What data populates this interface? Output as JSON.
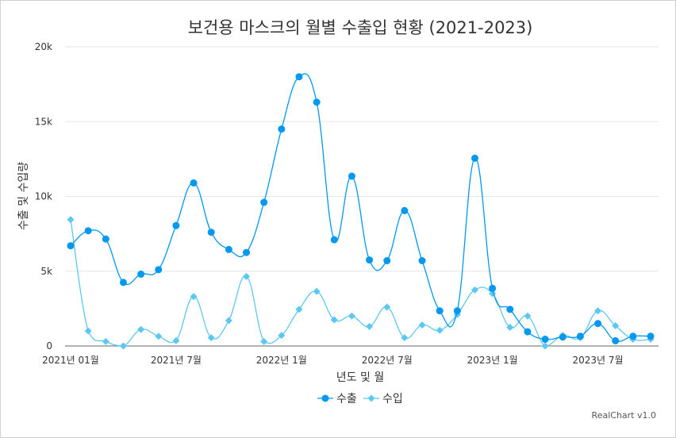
{
  "chart_data": {
    "type": "line",
    "title": "보건용 마스크의 월별 수출입 현황 (2021-2023)",
    "xlabel": "년도 및 월",
    "ylabel": "수출 및 수입량",
    "ylim": [
      0,
      20000
    ],
    "y_ticks": [
      "0",
      "5k",
      "10k",
      "15k",
      "20k"
    ],
    "y_tick_values": [
      0,
      5000,
      10000,
      15000,
      20000
    ],
    "x_tick_labels": [
      {
        "index": 0,
        "label": "2021년 01월"
      },
      {
        "index": 6,
        "label": "2021년 7월"
      },
      {
        "index": 12,
        "label": "2022년 1월"
      },
      {
        "index": 18,
        "label": "2022년 7월"
      },
      {
        "index": 24,
        "label": "2023년 1월"
      },
      {
        "index": 30,
        "label": "2023년 7월"
      }
    ],
    "grid": true,
    "legend_position": "bottom",
    "series": [
      {
        "name": "수출",
        "color": "#0098f0",
        "marker": "circle",
        "values": [
          6700,
          7700,
          7150,
          4250,
          4800,
          5100,
          8050,
          10900,
          7600,
          6450,
          6250,
          9600,
          14500,
          18000,
          16300,
          7100,
          11350,
          5750,
          5700,
          9050,
          5700,
          2350,
          2350,
          12550,
          3850,
          2450,
          950,
          450,
          600,
          650,
          1500,
          350,
          650,
          650
        ]
      },
      {
        "name": "수입",
        "color": "#5cc8f2",
        "marker": "diamond",
        "values": [
          8450,
          1000,
          300,
          0,
          1100,
          650,
          350,
          3300,
          550,
          1700,
          4650,
          300,
          700,
          2450,
          3650,
          1750,
          2000,
          1300,
          2600,
          550,
          1400,
          1050,
          2100,
          3750,
          3500,
          1250,
          2000,
          0,
          700,
          550,
          2350,
          1350,
          450,
          450
        ]
      }
    ]
  },
  "credit": "RealChart v1.0"
}
